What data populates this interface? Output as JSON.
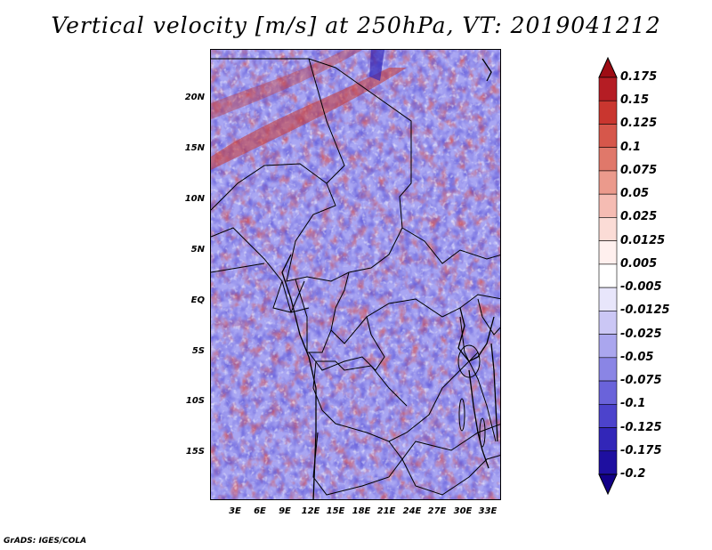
{
  "title": "Vertical velocity [m/s] at 250hPa, VT: 2019041212",
  "credit": "GrADS: IGES/COLA",
  "map": {
    "lat_labels": [
      "20N",
      "15N",
      "10N",
      "5N",
      "EQ",
      "5S",
      "10S",
      "15S"
    ],
    "lon_labels": [
      "3E",
      "6E",
      "9E",
      "12E",
      "15E",
      "18E",
      "21E",
      "24E",
      "27E",
      "30E",
      "33E"
    ]
  },
  "colorbar": {
    "labels": [
      "0.175",
      "0.15",
      "0.125",
      "0.1",
      "0.075",
      "0.05",
      "0.025",
      "0.0125",
      "0.005",
      "-0.005",
      "-0.0125",
      "-0.025",
      "-0.05",
      "-0.075",
      "-0.1",
      "-0.125",
      "-0.175",
      "-0.2"
    ],
    "colors": [
      "#9e0c14",
      "#b51d24",
      "#c9362f",
      "#d6574b",
      "#e0786a",
      "#eb9a8c",
      "#f5bcb3",
      "#fbdcd6",
      "#fff0ee",
      "#ffffff",
      "#e8e6fb",
      "#cbc7f5",
      "#aaa6ee",
      "#8a85e5",
      "#6a63da",
      "#4c43cc",
      "#3226b8",
      "#1e0fa0",
      "#120088"
    ]
  }
}
